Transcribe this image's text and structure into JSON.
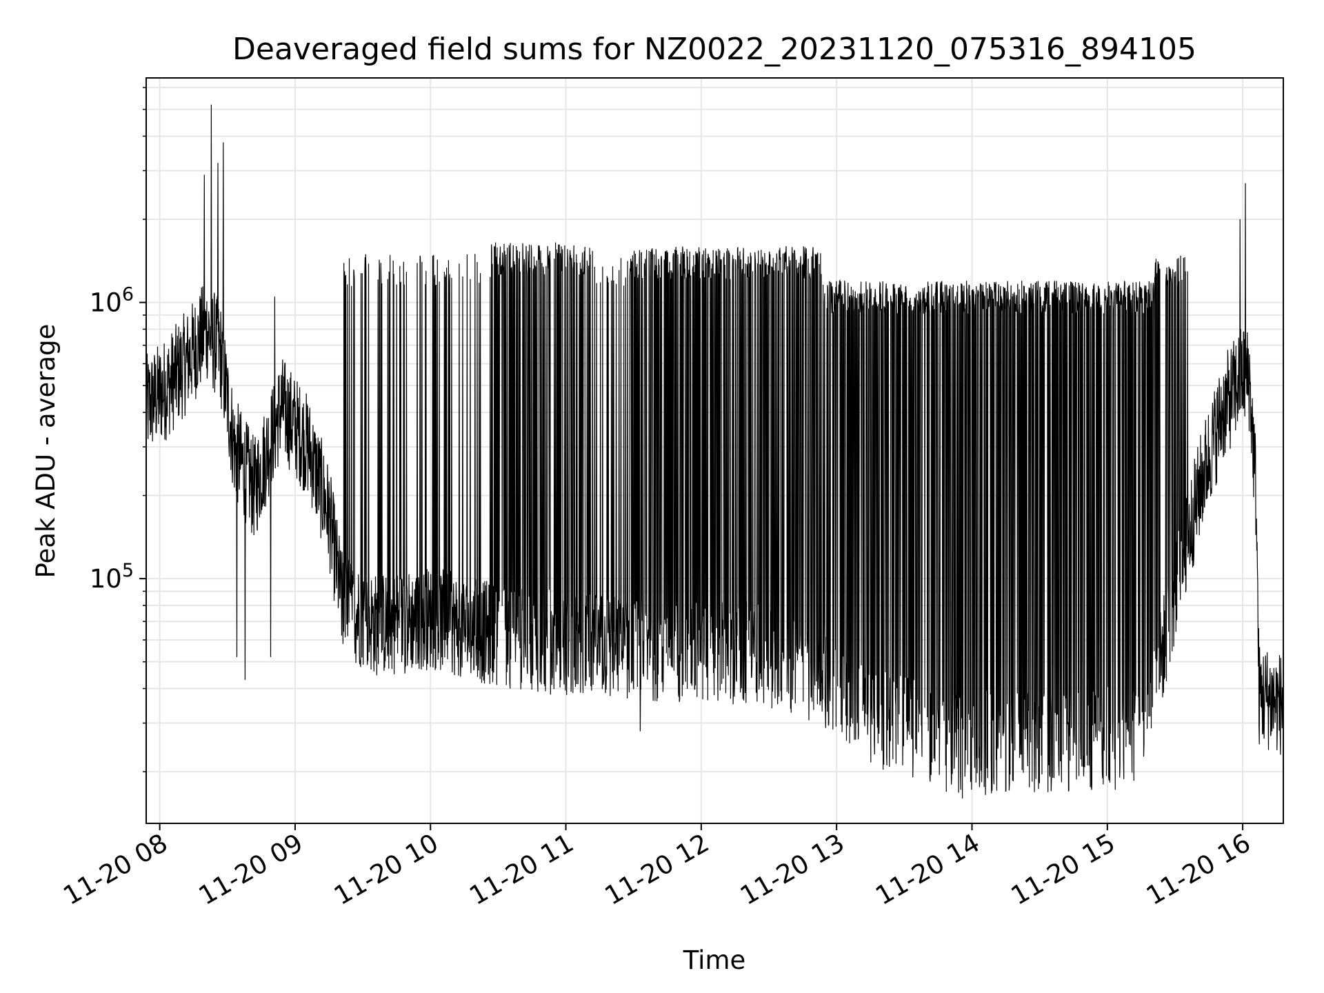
{
  "chart_data": {
    "type": "line",
    "title": "Deaveraged field sums for NZ0022_20231120_075316_894105",
    "xlabel": "Time",
    "ylabel": "Peak ADU - average",
    "yscale": "log",
    "xlim_hours": [
      7.9,
      16.3
    ],
    "ylim": [
      13000,
      6500000
    ],
    "grid": true,
    "legend": "none",
    "x_ticks": [
      {
        "hour": 8,
        "label": "11-20 08"
      },
      {
        "hour": 9,
        "label": "11-20 09"
      },
      {
        "hour": 10,
        "label": "11-20 10"
      },
      {
        "hour": 11,
        "label": "11-20 11"
      },
      {
        "hour": 12,
        "label": "11-20 12"
      },
      {
        "hour": 13,
        "label": "11-20 13"
      },
      {
        "hour": 14,
        "label": "11-20 14"
      },
      {
        "hour": 15,
        "label": "11-20 15"
      },
      {
        "hour": 16,
        "label": "11-20 16"
      }
    ],
    "y_ticks": [
      {
        "value": 100000,
        "base": "10",
        "exp": "5"
      },
      {
        "value": 1000000,
        "base": "10",
        "exp": "6"
      }
    ],
    "series": [
      {
        "color": "#000000",
        "baseline_profile": {
          "x_hours": [
            7.9,
            8.05,
            8.2,
            8.35,
            8.45,
            8.55,
            8.7,
            8.9,
            9.1,
            9.25,
            9.35,
            9.6,
            10.0,
            10.5,
            11.0,
            11.5,
            12.0,
            12.5,
            12.9,
            13.3,
            13.8,
            14.3,
            14.8,
            15.2,
            15.35,
            15.5,
            15.7,
            15.85,
            16.0,
            16.05,
            16.1,
            16.12,
            16.3
          ],
          "y": [
            420000,
            490000,
            610000,
            800000,
            650000,
            300000,
            210000,
            420000,
            300000,
            170000,
            80000,
            68000,
            72000,
            62000,
            58000,
            56000,
            55000,
            53000,
            45000,
            32000,
            26000,
            25000,
            26000,
            27000,
            40000,
            90000,
            230000,
            400000,
            550000,
            520000,
            200000,
            38000,
            35000
          ]
        },
        "spike_regions": [
          {
            "from_hour": 9.35,
            "to_hour": 10.45,
            "peak": 1500000,
            "density": 0.12
          },
          {
            "from_hour": 10.45,
            "to_hour": 11.2,
            "peak": 1650000,
            "density": 0.42
          },
          {
            "from_hour": 11.2,
            "to_hour": 11.45,
            "peak": 1500000,
            "density": 0.12
          },
          {
            "from_hour": 11.45,
            "to_hour": 12.9,
            "peak": 1600000,
            "density": 0.48
          },
          {
            "from_hour": 12.9,
            "to_hour": 15.35,
            "peak": 1200000,
            "density": 0.55
          },
          {
            "from_hour": 15.35,
            "to_hour": 15.6,
            "peak": 1500000,
            "density": 0.35
          }
        ],
        "notable_peaks": [
          {
            "hour": 8.38,
            "y": 5200000
          },
          {
            "hour": 8.47,
            "y": 3800000
          },
          {
            "hour": 8.43,
            "y": 3200000
          },
          {
            "hour": 8.33,
            "y": 2900000
          },
          {
            "hour": 16.02,
            "y": 2700000
          },
          {
            "hour": 15.98,
            "y": 2000000
          },
          {
            "hour": 8.85,
            "y": 1050000
          },
          {
            "hour": 8.57,
            "y": 52000
          },
          {
            "hour": 8.63,
            "y": 43000
          },
          {
            "hour": 8.82,
            "y": 52000
          },
          {
            "hour": 13.93,
            "y": 16000
          },
          {
            "hour": 14.25,
            "y": 17000
          },
          {
            "hour": 11.55,
            "y": 28000
          }
        ]
      }
    ]
  }
}
